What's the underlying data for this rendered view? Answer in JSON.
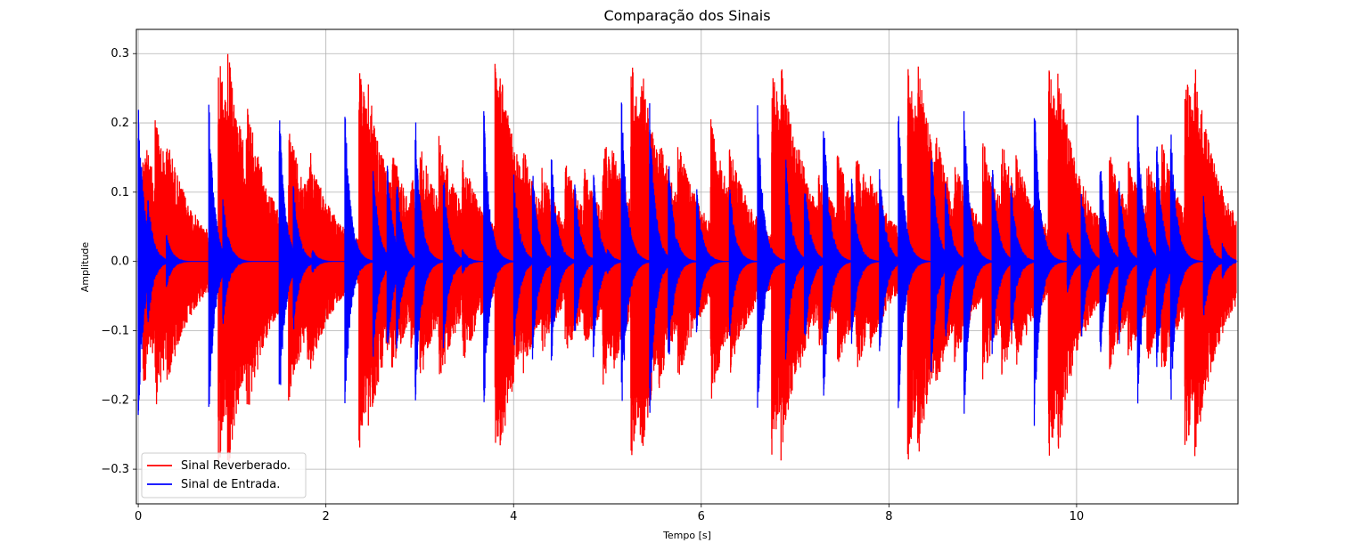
{
  "chart_data": {
    "type": "line",
    "title": "Comparação dos Sinais",
    "xlabel": "Tempo [s]",
    "ylabel": "Amplitude",
    "xlim": [
      -0.02,
      11.72
    ],
    "ylim": [
      -0.35,
      0.335
    ],
    "x_ticks": [
      0,
      2,
      4,
      6,
      8,
      10
    ],
    "x_tick_labels": [
      "0",
      "2",
      "4",
      "6",
      "8",
      "10"
    ],
    "y_ticks": [
      -0.3,
      -0.2,
      -0.1,
      0.0,
      0.1,
      0.2,
      0.3
    ],
    "y_tick_labels": [
      "−0.3",
      "−0.2",
      "−0.1",
      "0.0",
      "0.1",
      "0.2",
      "0.3"
    ],
    "grid": true,
    "legend_position": "bottom-left",
    "series": [
      {
        "name": "Sinal Reverberado.",
        "color": "#ff0000",
        "description_points": [
          {
            "t": 0.0,
            "amp": 0.0
          },
          {
            "t": 0.1,
            "amp": 0.21
          },
          {
            "t": 0.3,
            "amp": 0.18
          },
          {
            "t": 0.95,
            "amp": 0.305
          },
          {
            "t": 2.35,
            "amp": 0.29
          },
          {
            "t": 3.85,
            "amp": 0.29
          },
          {
            "t": 5.3,
            "amp": 0.29
          },
          {
            "t": 6.78,
            "amp": 0.29
          },
          {
            "t": 8.25,
            "amp": 0.29
          },
          {
            "t": 9.75,
            "amp": 0.29
          },
          {
            "t": 11.2,
            "amp": 0.29
          },
          {
            "t": 11.7,
            "amp": 0.0
          }
        ]
      },
      {
        "name": "Sinal de Entrada.",
        "color": "#0000ff",
        "description_points": [
          {
            "t": 0.0,
            "amp": 0.245
          },
          {
            "t": 0.75,
            "amp": 0.248
          },
          {
            "t": 1.5,
            "amp": 0.245
          },
          {
            "t": 2.2,
            "amp": 0.24
          },
          {
            "t": 3.7,
            "amp": 0.24
          },
          {
            "t": 5.15,
            "amp": 0.24
          },
          {
            "t": 6.6,
            "amp": 0.24
          },
          {
            "t": 8.1,
            "amp": 0.24
          },
          {
            "t": 9.55,
            "amp": 0.24
          },
          {
            "t": 11.7,
            "amp": 0.0
          }
        ]
      }
    ]
  }
}
